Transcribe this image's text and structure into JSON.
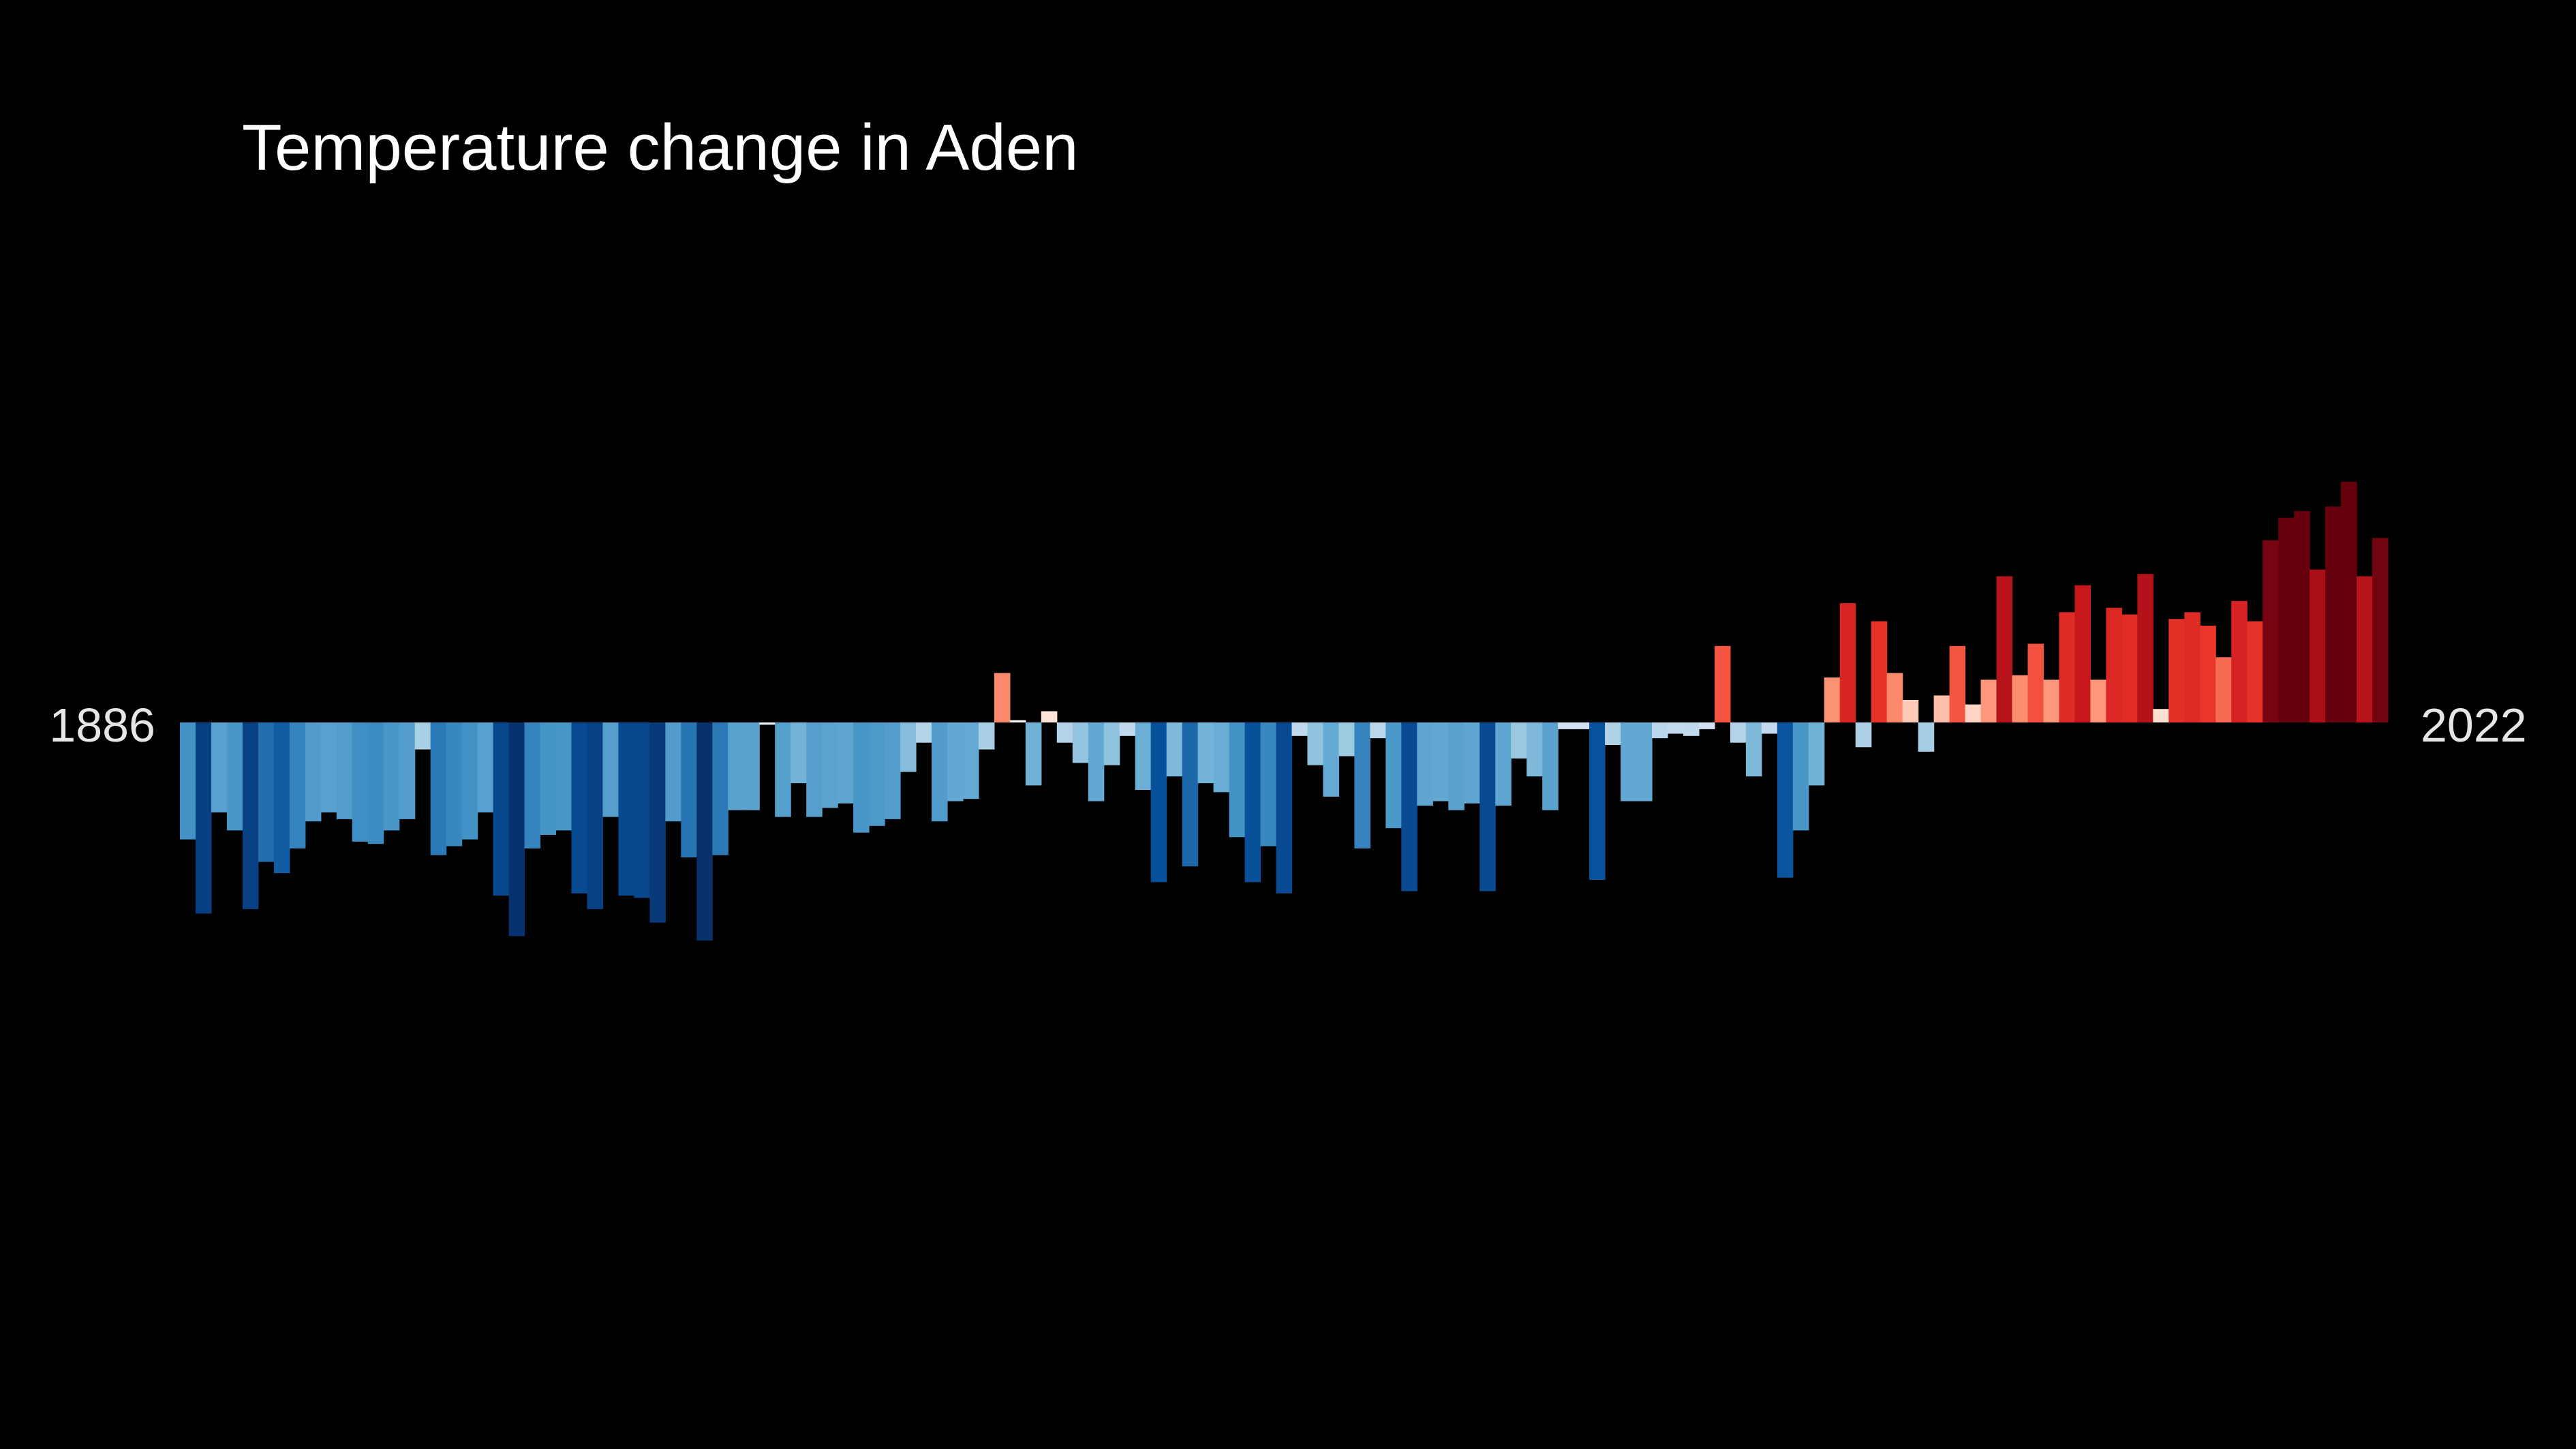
{
  "chart_data": {
    "type": "bar",
    "title": "Temperature change in Aden",
    "start_label": "1886",
    "end_label": "2022",
    "x_start": 1886,
    "x_end": 2022,
    "ylim": [
      -0.96,
      1.08
    ],
    "grid": false,
    "legend": "none",
    "values": [
      -0.52,
      -0.85,
      -0.4,
      -0.48,
      -0.83,
      -0.62,
      -0.67,
      -0.56,
      -0.44,
      -0.4,
      -0.43,
      -0.53,
      -0.54,
      -0.48,
      -0.43,
      -0.12,
      -0.59,
      -0.55,
      -0.52,
      -0.4,
      -0.77,
      -0.95,
      -0.56,
      -0.5,
      -0.48,
      -0.76,
      -0.83,
      -0.42,
      -0.77,
      -0.78,
      -0.89,
      -0.44,
      -0.6,
      -0.97,
      -0.59,
      -0.39,
      -0.39,
      -0.01,
      -0.42,
      -0.27,
      -0.42,
      -0.38,
      -0.36,
      -0.49,
      -0.46,
      -0.43,
      -0.22,
      -0.09,
      -0.44,
      -0.35,
      -0.34,
      -0.12,
      0.22,
      0.01,
      -0.28,
      0.05,
      -0.09,
      -0.18,
      -0.35,
      -0.19,
      -0.06,
      -0.3,
      -0.71,
      -0.24,
      -0.64,
      -0.27,
      -0.31,
      -0.51,
      -0.71,
      -0.55,
      -0.76,
      -0.06,
      -0.19,
      -0.33,
      -0.15,
      -0.56,
      -0.07,
      -0.47,
      -0.75,
      -0.37,
      -0.35,
      -0.39,
      -0.36,
      -0.75,
      -0.37,
      -0.16,
      -0.24,
      -0.39,
      -0.03,
      -0.03,
      -0.7,
      -0.1,
      -0.35,
      -0.35,
      -0.07,
      -0.05,
      -0.06,
      -0.03,
      0.34,
      -0.09,
      -0.24,
      -0.05,
      -0.69,
      -0.48,
      -0.28,
      0.2,
      0.53,
      -0.11,
      0.45,
      0.22,
      0.1,
      -0.13,
      0.12,
      0.34,
      0.08,
      0.19,
      0.65,
      0.21,
      0.35,
      0.19,
      0.49,
      0.61,
      0.19,
      0.51,
      0.48,
      0.66,
      0.06,
      0.46,
      0.49,
      0.43,
      0.29,
      0.54,
      0.45,
      0.81,
      0.91,
      0.94,
      0.68,
      0.96,
      1.07,
      0.65,
      0.82
    ]
  }
}
